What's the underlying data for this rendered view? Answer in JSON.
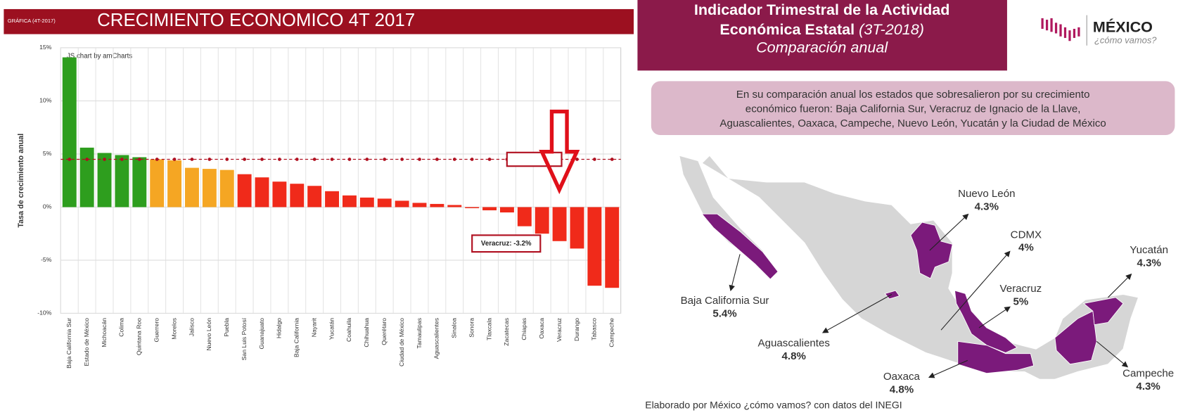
{
  "chart_data": {
    "type": "bar",
    "title": "CRECIMIENTO ECONOMICO 4T 2017",
    "source_tag": "GRÁFICA (4T-2017)",
    "watermark": "JS chart by amCharts",
    "y_label": "Tasa de crecimiento anual",
    "categories": [
      "Baja California Sur",
      "Estado de México",
      "Michoacán",
      "Colima",
      "Quintana Roo",
      "Guerrero",
      "Morelos",
      "Jalisco",
      "Nuevo León",
      "Puebla",
      "San Luis Potosí",
      "Guanajuato",
      "Hidalgo",
      "Baja California",
      "Nayarit",
      "Yucatán",
      "Coahuila",
      "Chihuahua",
      "Querétaro",
      "Ciudad de México",
      "Tamaulipas",
      "Aguascalientes",
      "Sinaloa",
      "Sonora",
      "Tlaxcala",
      "Zacatecas",
      "Chiapas",
      "Oaxaca",
      "Veracruz",
      "Durango",
      "Tabasco",
      "Campeche"
    ],
    "values": [
      14.1,
      5.6,
      5.1,
      4.9,
      4.7,
      4.5,
      4.4,
      3.7,
      3.6,
      3.5,
      3.1,
      2.8,
      2.4,
      2.2,
      2.0,
      1.5,
      1.1,
      0.9,
      0.8,
      0.6,
      0.4,
      0.3,
      0.2,
      -0.1,
      -0.3,
      -0.5,
      -1.8,
      -2.5,
      -3.2,
      -3.9,
      -7.4,
      -7.6
    ],
    "colors": [
      "#2e9e1e",
      "#2e9e1e",
      "#2e9e1e",
      "#2e9e1e",
      "#2e9e1e",
      "#f5a623",
      "#f5a623",
      "#f5a623",
      "#f5a623",
      "#f5a623",
      "#f02a1a",
      "#f02a1a",
      "#f02a1a",
      "#f02a1a",
      "#f02a1a",
      "#f02a1a",
      "#f02a1a",
      "#f02a1a",
      "#f02a1a",
      "#f02a1a",
      "#f02a1a",
      "#f02a1a",
      "#f02a1a",
      "#f02a1a",
      "#f02a1a",
      "#f02a1a",
      "#f02a1a",
      "#f02a1a",
      "#f02a1a",
      "#f02a1a",
      "#f02a1a",
      "#f02a1a"
    ],
    "ylim": [
      -10,
      15
    ],
    "yticks": [
      {
        "value": -10,
        "label": "-10%"
      },
      {
        "value": -5,
        "label": "-5%"
      },
      {
        "value": 0,
        "label": "0%"
      },
      {
        "value": 5,
        "label": "5%"
      },
      {
        "value": 10,
        "label": "10%"
      },
      {
        "value": 15,
        "label": "15%"
      }
    ],
    "grid": true,
    "reference_line": 4.5,
    "annotation": "Veracruz: -3.2%"
  },
  "header": {
    "title_line1": "Indicador Trimestral de la Actividad",
    "title_line2": "Económica Estatal",
    "period": "(3T-2018)",
    "subtitle": "Comparación anual"
  },
  "logo": {
    "name": "MÉXICO",
    "tagline": "¿cómo vamos?"
  },
  "summary": [
    "En su comparación anual los estados que sobresalieron por su crecimiento",
    "económico fueron: Baja California Sur, Veracruz de Ignacio de la Llave,",
    "Aguascalientes, Oaxaca, Campeche, Nuevo León, Yucatán y la Ciudad de México"
  ],
  "map_labels": [
    {
      "name": "Nuevo León",
      "value": "4.3%"
    },
    {
      "name": "CDMX",
      "value": "4%"
    },
    {
      "name": "Yucatán",
      "value": "4.3%"
    },
    {
      "name": "Veracruz",
      "value": "5%"
    },
    {
      "name": "Baja California Sur",
      "value": "5.4%"
    },
    {
      "name": "Aguascalientes",
      "value": "4.8%"
    },
    {
      "name": "Oaxaca",
      "value": "4.8%"
    },
    {
      "name": "Campeche",
      "value": "4.3%"
    }
  ],
  "footer": "Elaborado por México ¿cómo vamos? con datos del INEGI"
}
